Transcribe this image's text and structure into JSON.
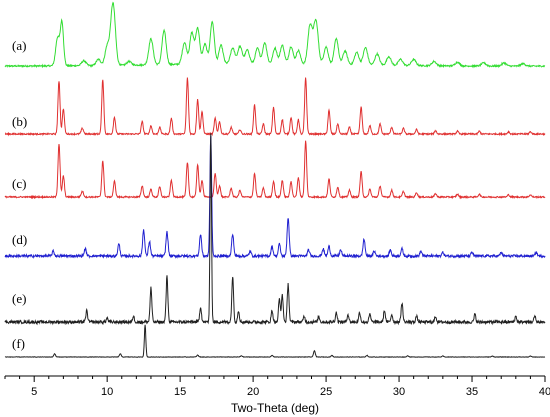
{
  "chart_data": {
    "type": "line",
    "xlabel": "Two-Theta (deg)",
    "ylabel": "",
    "xlim": [
      3,
      40
    ],
    "x_ticks": [
      5,
      10,
      15,
      20,
      25,
      30,
      35,
      40
    ],
    "grid": false,
    "legend": "none",
    "series": [
      {
        "name": "(a)",
        "color": "#33dd33",
        "baseline": 0.03,
        "noise": 0.012,
        "peaks": [
          [
            6.6,
            0.45,
            0.13
          ],
          [
            6.9,
            0.7,
            0.11
          ],
          [
            8.4,
            0.08,
            0.15
          ],
          [
            9.4,
            0.1,
            0.15
          ],
          [
            10.0,
            0.3,
            0.15
          ],
          [
            10.4,
            1.0,
            0.16
          ],
          [
            11.5,
            0.06,
            0.15
          ],
          [
            13.0,
            0.42,
            0.15
          ],
          [
            13.9,
            0.55,
            0.14
          ],
          [
            15.3,
            0.35,
            0.15
          ],
          [
            15.8,
            0.5,
            0.14
          ],
          [
            16.2,
            0.58,
            0.14
          ],
          [
            16.7,
            0.32,
            0.14
          ],
          [
            17.2,
            0.68,
            0.14
          ],
          [
            17.8,
            0.3,
            0.14
          ],
          [
            18.6,
            0.25,
            0.15
          ],
          [
            19.1,
            0.28,
            0.15
          ],
          [
            19.6,
            0.22,
            0.15
          ],
          [
            20.3,
            0.25,
            0.14
          ],
          [
            20.8,
            0.34,
            0.14
          ],
          [
            21.5,
            0.25,
            0.14
          ],
          [
            22.0,
            0.3,
            0.14
          ],
          [
            22.6,
            0.28,
            0.14
          ],
          [
            23.1,
            0.22,
            0.14
          ],
          [
            23.9,
            0.62,
            0.15
          ],
          [
            24.3,
            0.7,
            0.16
          ],
          [
            25.0,
            0.28,
            0.15
          ],
          [
            25.7,
            0.42,
            0.14
          ],
          [
            26.3,
            0.22,
            0.15
          ],
          [
            27.1,
            0.2,
            0.15
          ],
          [
            27.7,
            0.28,
            0.15
          ],
          [
            28.5,
            0.18,
            0.15
          ],
          [
            29.3,
            0.14,
            0.15
          ],
          [
            30.1,
            0.1,
            0.15
          ],
          [
            31.0,
            0.1,
            0.15
          ],
          [
            32.4,
            0.07,
            0.15
          ],
          [
            34.0,
            0.06,
            0.15
          ],
          [
            35.8,
            0.05,
            0.15
          ],
          [
            37.2,
            0.05,
            0.15
          ],
          [
            38.5,
            0.04,
            0.15
          ]
        ]
      },
      {
        "name": "(b)",
        "color": "#e03030",
        "baseline": 0.0,
        "noise": 0.012,
        "peaks": [
          [
            6.7,
            0.95,
            0.07
          ],
          [
            7.0,
            0.45,
            0.07
          ],
          [
            8.3,
            0.1,
            0.08
          ],
          [
            9.7,
            0.98,
            0.07
          ],
          [
            10.5,
            0.3,
            0.07
          ],
          [
            12.4,
            0.22,
            0.07
          ],
          [
            13.0,
            0.15,
            0.07
          ],
          [
            13.6,
            0.12,
            0.07
          ],
          [
            14.4,
            0.28,
            0.07
          ],
          [
            15.5,
            1.0,
            0.07
          ],
          [
            16.2,
            0.62,
            0.07
          ],
          [
            16.5,
            0.4,
            0.07
          ],
          [
            17.4,
            0.28,
            0.07
          ],
          [
            17.7,
            0.22,
            0.07
          ],
          [
            18.5,
            0.12,
            0.07
          ],
          [
            19.1,
            0.08,
            0.07
          ],
          [
            20.1,
            0.52,
            0.07
          ],
          [
            20.7,
            0.18,
            0.07
          ],
          [
            21.4,
            0.48,
            0.07
          ],
          [
            22.0,
            0.26,
            0.07
          ],
          [
            22.6,
            0.3,
            0.07
          ],
          [
            23.1,
            0.26,
            0.07
          ],
          [
            23.6,
            1.0,
            0.07
          ],
          [
            25.2,
            0.42,
            0.07
          ],
          [
            25.8,
            0.18,
            0.07
          ],
          [
            26.6,
            0.12,
            0.07
          ],
          [
            27.4,
            0.48,
            0.07
          ],
          [
            28.0,
            0.15,
            0.07
          ],
          [
            28.7,
            0.18,
            0.07
          ],
          [
            29.5,
            0.12,
            0.07
          ],
          [
            30.3,
            0.1,
            0.07
          ],
          [
            31.2,
            0.08,
            0.07
          ],
          [
            32.5,
            0.06,
            0.07
          ],
          [
            34.0,
            0.05,
            0.07
          ],
          [
            35.5,
            0.05,
            0.07
          ],
          [
            37.5,
            0.04,
            0.07
          ],
          [
            39.0,
            0.04,
            0.07
          ]
        ]
      },
      {
        "name": "(c)",
        "color": "#e03030",
        "baseline": 0.0,
        "noise": 0.012,
        "peaks": [
          [
            6.7,
            0.95,
            0.07
          ],
          [
            7.0,
            0.38,
            0.07
          ],
          [
            8.3,
            0.1,
            0.08
          ],
          [
            9.7,
            0.65,
            0.07
          ],
          [
            10.5,
            0.28,
            0.07
          ],
          [
            12.4,
            0.2,
            0.07
          ],
          [
            13.0,
            0.14,
            0.07
          ],
          [
            13.6,
            0.18,
            0.07
          ],
          [
            14.4,
            0.3,
            0.07
          ],
          [
            15.5,
            0.62,
            0.07
          ],
          [
            16.2,
            0.58,
            0.07
          ],
          [
            16.5,
            0.3,
            0.07
          ],
          [
            17.4,
            0.42,
            0.07
          ],
          [
            17.7,
            0.2,
            0.07
          ],
          [
            18.5,
            0.16,
            0.07
          ],
          [
            19.1,
            0.12,
            0.07
          ],
          [
            20.1,
            0.42,
            0.07
          ],
          [
            20.7,
            0.16,
            0.07
          ],
          [
            21.4,
            0.28,
            0.07
          ],
          [
            22.0,
            0.3,
            0.07
          ],
          [
            22.6,
            0.28,
            0.07
          ],
          [
            23.1,
            0.35,
            0.07
          ],
          [
            23.6,
            1.0,
            0.07
          ],
          [
            25.2,
            0.32,
            0.07
          ],
          [
            25.8,
            0.18,
            0.07
          ],
          [
            26.6,
            0.12,
            0.07
          ],
          [
            27.4,
            0.45,
            0.07
          ],
          [
            28.0,
            0.14,
            0.07
          ],
          [
            28.7,
            0.2,
            0.07
          ],
          [
            29.5,
            0.12,
            0.07
          ],
          [
            30.3,
            0.1,
            0.07
          ],
          [
            31.2,
            0.08,
            0.07
          ],
          [
            32.5,
            0.06,
            0.07
          ],
          [
            34.0,
            0.05,
            0.07
          ],
          [
            35.5,
            0.05,
            0.07
          ],
          [
            37.5,
            0.04,
            0.07
          ],
          [
            39.0,
            0.04,
            0.07
          ]
        ]
      },
      {
        "name": "(d)",
        "color": "#2020d0",
        "baseline": 0.0,
        "noise": 0.01,
        "peaks": [
          [
            6.3,
            0.04,
            0.07
          ],
          [
            8.5,
            0.06,
            0.07
          ],
          [
            10.8,
            0.1,
            0.07
          ],
          [
            12.5,
            0.22,
            0.07
          ],
          [
            12.9,
            0.12,
            0.07
          ],
          [
            14.1,
            0.2,
            0.07
          ],
          [
            16.4,
            0.18,
            0.07
          ],
          [
            17.1,
            1.0,
            0.06
          ],
          [
            18.6,
            0.18,
            0.07
          ],
          [
            19.8,
            0.04,
            0.07
          ],
          [
            21.3,
            0.08,
            0.07
          ],
          [
            21.8,
            0.1,
            0.07
          ],
          [
            22.4,
            0.32,
            0.07
          ],
          [
            23.8,
            0.05,
            0.07
          ],
          [
            24.8,
            0.06,
            0.07
          ],
          [
            25.2,
            0.08,
            0.07
          ],
          [
            26.0,
            0.05,
            0.07
          ],
          [
            27.6,
            0.14,
            0.07
          ],
          [
            28.3,
            0.04,
            0.07
          ],
          [
            29.4,
            0.05,
            0.07
          ],
          [
            30.2,
            0.06,
            0.07
          ],
          [
            31.5,
            0.04,
            0.07
          ],
          [
            33.0,
            0.03,
            0.07
          ],
          [
            35.0,
            0.03,
            0.07
          ],
          [
            37.0,
            0.03,
            0.07
          ],
          [
            39.4,
            0.03,
            0.07
          ]
        ]
      },
      {
        "name": "(e)",
        "color": "#202020",
        "baseline": 0.0,
        "noise": 0.008,
        "peaks": [
          [
            8.6,
            0.06,
            0.06
          ],
          [
            10.0,
            0.02,
            0.06
          ],
          [
            11.8,
            0.03,
            0.06
          ],
          [
            13.0,
            0.18,
            0.06
          ],
          [
            14.1,
            0.24,
            0.06
          ],
          [
            16.4,
            0.08,
            0.06
          ],
          [
            17.1,
            1.0,
            0.05
          ],
          [
            18.6,
            0.24,
            0.06
          ],
          [
            19.0,
            0.06,
            0.06
          ],
          [
            21.3,
            0.06,
            0.06
          ],
          [
            21.8,
            0.12,
            0.06
          ],
          [
            22.0,
            0.14,
            0.06
          ],
          [
            22.4,
            0.2,
            0.06
          ],
          [
            23.5,
            0.03,
            0.06
          ],
          [
            24.5,
            0.03,
            0.06
          ],
          [
            25.7,
            0.05,
            0.06
          ],
          [
            26.5,
            0.04,
            0.06
          ],
          [
            27.3,
            0.05,
            0.06
          ],
          [
            28.0,
            0.04,
            0.06
          ],
          [
            29.0,
            0.06,
            0.06
          ],
          [
            29.5,
            0.04,
            0.06
          ],
          [
            30.2,
            0.1,
            0.06
          ],
          [
            31.2,
            0.03,
            0.06
          ],
          [
            32.5,
            0.03,
            0.06
          ],
          [
            35.2,
            0.04,
            0.06
          ],
          [
            38.0,
            0.03,
            0.06
          ],
          [
            39.3,
            0.03,
            0.06
          ]
        ]
      },
      {
        "name": "(f)",
        "color": "#202020",
        "baseline": 0.0,
        "noise": 0.006,
        "peaks": [
          [
            6.4,
            0.1,
            0.06
          ],
          [
            10.9,
            0.1,
            0.06
          ],
          [
            12.6,
            1.0,
            0.05
          ],
          [
            16.2,
            0.06,
            0.06
          ],
          [
            19.2,
            0.04,
            0.06
          ],
          [
            21.3,
            0.05,
            0.06
          ],
          [
            24.2,
            0.2,
            0.06
          ],
          [
            25.4,
            0.05,
            0.06
          ],
          [
            27.8,
            0.05,
            0.06
          ],
          [
            30.6,
            0.04,
            0.06
          ],
          [
            33.0,
            0.03,
            0.06
          ],
          [
            36.4,
            0.03,
            0.06
          ],
          [
            39.0,
            0.03,
            0.06
          ]
        ]
      }
    ]
  }
}
